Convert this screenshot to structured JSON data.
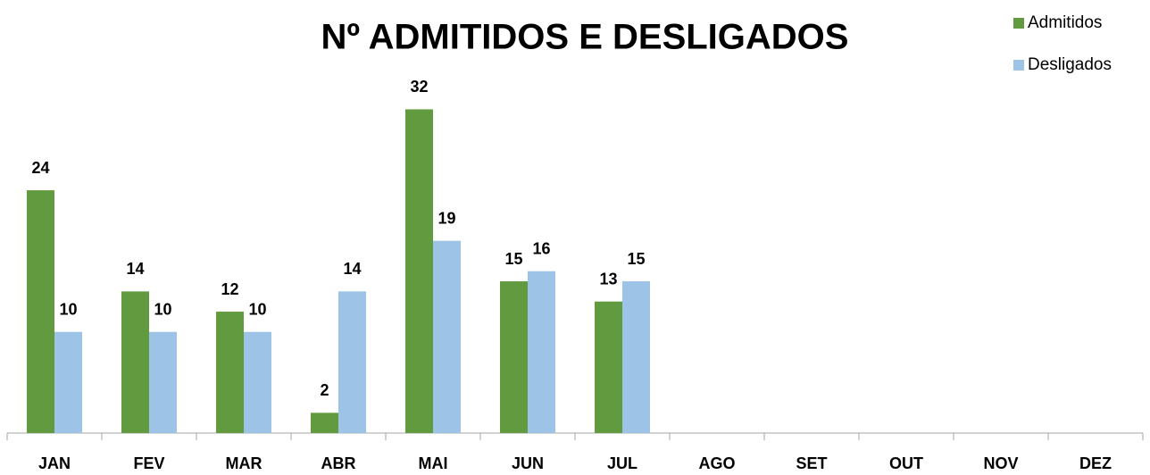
{
  "chart_data": {
    "type": "bar",
    "title": "Nº ADMITIDOS E DESLIGADOS",
    "categories": [
      "JAN",
      "FEV",
      "MAR",
      "ABR",
      "MAI",
      "JUN",
      "JUL",
      "AGO",
      "SET",
      "OUT",
      "NOV",
      "DEZ"
    ],
    "series": [
      {
        "name": "Admitidos",
        "color": "#629b3f",
        "values": [
          24,
          14,
          12,
          2,
          32,
          15,
          13,
          null,
          null,
          null,
          null,
          null
        ]
      },
      {
        "name": "Desligados",
        "color": "#9dc3e6",
        "values": [
          10,
          10,
          10,
          14,
          19,
          16,
          15,
          null,
          null,
          null,
          null,
          null
        ]
      }
    ],
    "legend": "top-right"
  }
}
